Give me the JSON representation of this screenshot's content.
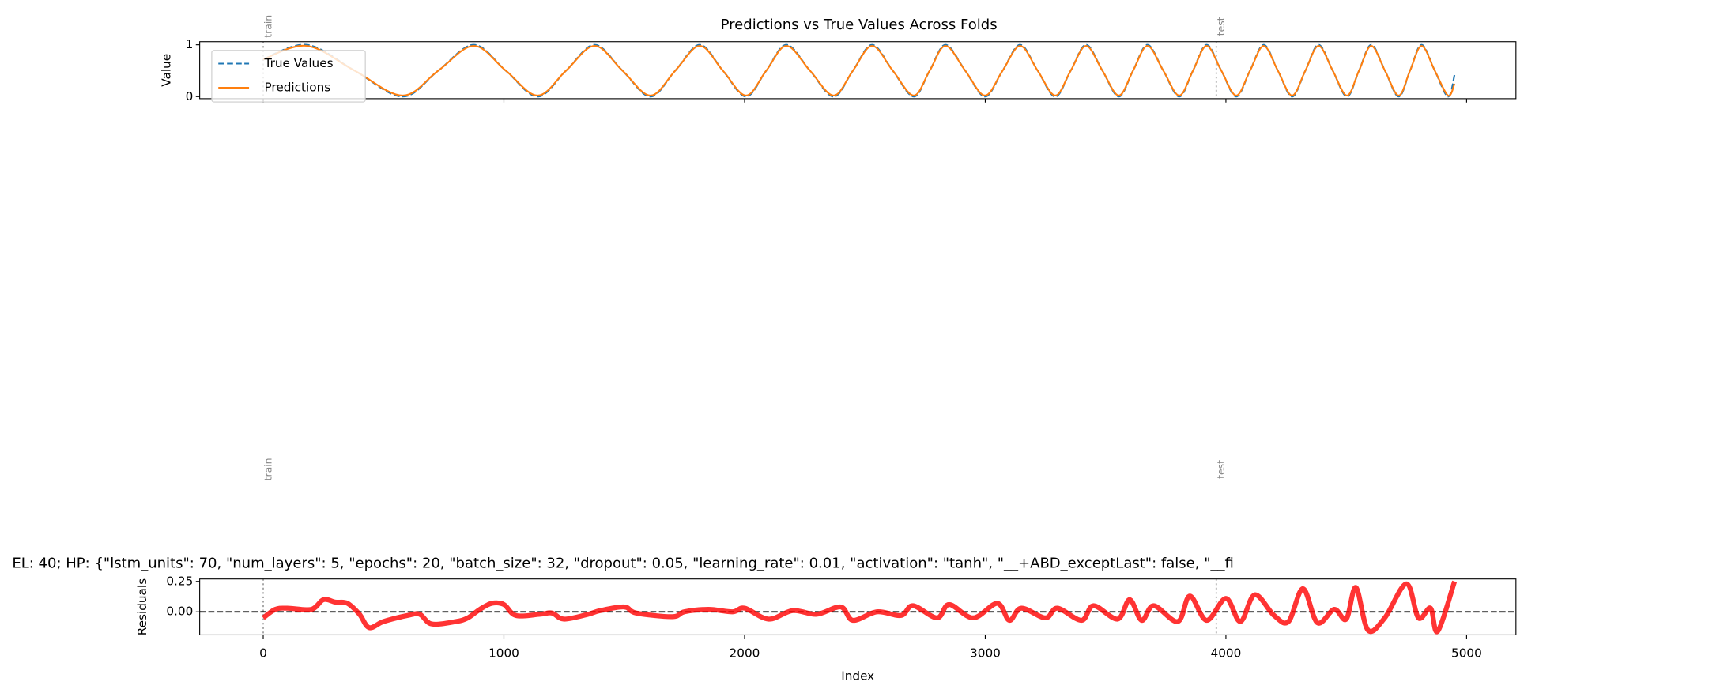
{
  "chart_data": [
    {
      "type": "line",
      "title": "Predictions vs True Values Across Folds",
      "ylabel": "Value",
      "x": [
        0,
        182,
        380,
        579,
        727,
        875,
        1008,
        1140,
        1258,
        1377,
        1493,
        1609,
        1712,
        1814,
        1910,
        2006,
        2090,
        2174,
        2272,
        2370,
        2450,
        2530,
        2616,
        2703,
        2769,
        2835,
        2917,
        2999,
        3072,
        3145,
        3218,
        3291,
        3355,
        3419,
        3487,
        3555,
        3614,
        3674,
        3740,
        3806,
        3863,
        3920,
        3981,
        4043,
        4100,
        4157,
        4216,
        4275,
        4330,
        4385,
        4444,
        4503,
        4553,
        4604,
        4661,
        4718,
        4765,
        4813,
        4868,
        4923,
        4950
      ],
      "series": [
        {
          "name": "True Values",
          "color": "#1f77b4",
          "dash": true,
          "values": [
            0.72,
            1,
            0.5,
            0,
            0.5,
            1,
            0.5,
            0,
            0.5,
            1,
            0.5,
            0,
            0.5,
            1,
            0.5,
            0,
            0.5,
            1,
            0.5,
            0,
            0.5,
            1,
            0.5,
            0,
            0.5,
            1,
            0.5,
            0,
            0.5,
            1,
            0.5,
            0,
            0.5,
            1,
            0.5,
            0,
            0.5,
            1,
            0.5,
            0,
            0.5,
            1,
            0.5,
            0,
            0.5,
            1,
            0.5,
            0,
            0.5,
            1,
            0.5,
            0,
            0.5,
            1,
            0.5,
            0,
            0.5,
            1,
            0.5,
            0,
            0.42
          ]
        },
        {
          "name": "Predictions",
          "color": "#ff7f0e",
          "dash": false,
          "values": [
            0.72,
            0.98,
            0.5,
            0.02,
            0.5,
            0.98,
            0.5,
            0.02,
            0.5,
            0.98,
            0.5,
            0.02,
            0.5,
            0.98,
            0.5,
            0.02,
            0.5,
            0.98,
            0.5,
            0.02,
            0.5,
            0.98,
            0.5,
            0.02,
            0.5,
            0.98,
            0.5,
            0.02,
            0.5,
            0.98,
            0.5,
            0.02,
            0.5,
            0.98,
            0.5,
            0.02,
            0.5,
            0.98,
            0.5,
            0.02,
            0.5,
            0.98,
            0.5,
            0.02,
            0.5,
            0.98,
            0.5,
            0.02,
            0.5,
            0.98,
            0.5,
            0.02,
            0.5,
            0.98,
            0.5,
            0.02,
            0.5,
            0.98,
            0.5,
            0.02,
            0.25
          ]
        }
      ],
      "xlim": [
        -264,
        5205
      ],
      "xticks": [
        0,
        1000,
        2000,
        3000,
        4000,
        5000
      ],
      "ylim": [
        -0.04,
        1.06
      ],
      "yticks": [
        0,
        1
      ],
      "legend": "upper left",
      "annotations": [
        {
          "x": 0,
          "label": "train"
        },
        {
          "x": 3960,
          "label": "test"
        }
      ]
    },
    {
      "type": "line",
      "title": "EL: 40; HP: {\"lstm_units\": 70, \"num_layers\": 5, \"epochs\": 20, \"batch_size\": 32, \"dropout\": 0.05, \"learning_rate\": 0.01, \"activation\": \"tanh\", \"__+ABD_exceptLast\": false, \"__fi",
      "xlabel": "Index",
      "ylabel": "Residuals",
      "x": [
        0,
        50,
        100,
        200,
        250,
        300,
        350,
        400,
        440,
        500,
        600,
        650,
        700,
        800,
        850,
        900,
        950,
        1000,
        1050,
        1150,
        1200,
        1250,
        1350,
        1400,
        1500,
        1550,
        1700,
        1750,
        1850,
        1950,
        2000,
        2100,
        2200,
        2300,
        2400,
        2450,
        2550,
        2650,
        2700,
        2800,
        2850,
        2950,
        3050,
        3100,
        3150,
        3250,
        3300,
        3400,
        3450,
        3550,
        3600,
        3650,
        3700,
        3800,
        3850,
        3920,
        4000,
        4060,
        4120,
        4200,
        4260,
        4320,
        4380,
        4450,
        4500,
        4540,
        4590,
        4660,
        4750,
        4800,
        4850,
        4880,
        4950
      ],
      "series": [
        {
          "name": "Residuals",
          "color": "#ff0000",
          "values": [
            -0.05,
            0.02,
            0.03,
            0.02,
            0.1,
            0.08,
            0.07,
            -0.02,
            -0.13,
            -0.08,
            -0.03,
            -0.02,
            -0.1,
            -0.08,
            -0.05,
            0.02,
            0.07,
            0.06,
            -0.03,
            -0.02,
            -0.01,
            -0.06,
            -0.02,
            0.01,
            0.04,
            -0.01,
            -0.04,
            0.0,
            0.02,
            0.0,
            0.03,
            -0.06,
            0.01,
            -0.02,
            0.04,
            -0.07,
            0.0,
            -0.03,
            0.05,
            -0.05,
            0.06,
            -0.05,
            0.07,
            -0.07,
            0.03,
            -0.05,
            0.03,
            -0.07,
            0.05,
            -0.06,
            0.1,
            -0.07,
            0.05,
            -0.08,
            0.13,
            -0.07,
            0.11,
            -0.08,
            0.14,
            -0.03,
            -0.08,
            0.19,
            -0.09,
            0.02,
            -0.06,
            0.2,
            -0.15,
            -0.05,
            0.23,
            -0.05,
            0.03,
            -0.16,
            0.25
          ]
        }
      ],
      "xlim": [
        -264,
        5205
      ],
      "xticks": [
        0,
        1000,
        2000,
        3000,
        4000,
        5000
      ],
      "ylim": [
        -0.19,
        0.27
      ],
      "yticks": [
        {
          "value": 0,
          "label": "0.00"
        },
        {
          "value": 0.25,
          "label": "0.25"
        }
      ],
      "annotations": [
        {
          "x": 0,
          "label": "train"
        },
        {
          "x": 3960,
          "label": "test"
        }
      ]
    }
  ]
}
